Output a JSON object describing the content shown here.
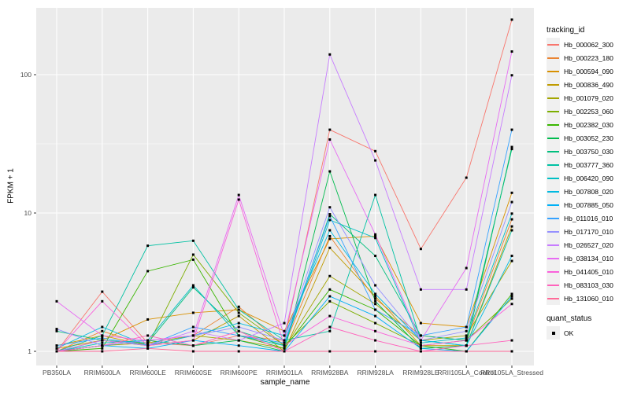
{
  "figure": {
    "y_axis": {
      "title": "FPKM + 1",
      "tick_labels": [
        "1",
        "10",
        "100"
      ]
    },
    "x_axis": {
      "title": "sample_name"
    },
    "legend": {
      "tracking_title": "tracking_id",
      "quant_title": "quant_status",
      "quant_items": [
        {
          "label": "OK"
        }
      ]
    },
    "colors": {
      "panel_bg": "#EBEBEB",
      "grid": "#FFFFFF",
      "tick_text": "#4D4D4D",
      "axis_tick": "#333333",
      "marker": "#000000",
      "legend_key_bg": "#F0F0F0"
    }
  },
  "chart_data": {
    "type": "line",
    "title": "",
    "xlabel": "sample_name",
    "ylabel": "FPKM + 1",
    "y_scale": "log10",
    "y_ticks": [
      1,
      10,
      100
    ],
    "y_minor_ticks": [
      3.162,
      31.62
    ],
    "ylim": [
      0.79,
      300
    ],
    "grid": true,
    "legend_position": "right",
    "marker": "black-square",
    "quant_status": {
      "label": "OK",
      "marker": "black-square"
    },
    "categories": [
      "PB350LA",
      "RRIM600LA",
      "RRIM600LE",
      "RRIM600SE",
      "RRIM600PE",
      "RRIM901LA",
      "RRIM928BA",
      "RRIM928LA",
      "RRIM928LE",
      "RRII105LA_Control",
      "RRII105LA_Stressed"
    ],
    "series": [
      {
        "name": "Hb_000062_300",
        "color": "#F8766D",
        "values": [
          1.0,
          2.7,
          1.15,
          1.1,
          1.3,
          1.2,
          40,
          28,
          5.5,
          18,
          250
        ]
      },
      {
        "name": "Hb_000223_180",
        "color": "#EA8331",
        "values": [
          1.0,
          1.4,
          1.1,
          1.3,
          2.1,
          1.1,
          6.8,
          2.4,
          1.3,
          1.2,
          9.0
        ]
      },
      {
        "name": "Hb_000594_090",
        "color": "#D89000",
        "values": [
          1.05,
          1.2,
          1.7,
          1.9,
          2.0,
          1.4,
          6.5,
          6.8,
          1.6,
          1.5,
          14
        ]
      },
      {
        "name": "Hb_000836_490",
        "color": "#C09B00",
        "values": [
          1.1,
          1.3,
          1.1,
          1.2,
          1.8,
          1.0,
          5.6,
          2.5,
          1.1,
          1.1,
          8.0
        ]
      },
      {
        "name": "Hb_001079_020",
        "color": "#A3A500",
        "values": [
          1.0,
          1.1,
          1.15,
          1.3,
          1.2,
          1.05,
          3.5,
          2.2,
          1.2,
          1.3,
          4.5
        ]
      },
      {
        "name": "Hb_002253_060",
        "color": "#7CAE00",
        "values": [
          1.0,
          1.2,
          1.1,
          5.0,
          1.9,
          1.1,
          2.3,
          1.6,
          1.1,
          1.2,
          2.4
        ]
      },
      {
        "name": "Hb_002382_030",
        "color": "#39B600",
        "values": [
          1.0,
          1.05,
          3.8,
          4.6,
          1.3,
          1.05,
          2.8,
          2.0,
          1.1,
          1.0,
          2.6
        ]
      },
      {
        "name": "Hb_003052_230",
        "color": "#00BB4E",
        "values": [
          1.0,
          1.1,
          1.2,
          1.1,
          1.2,
          1.0,
          20,
          2.3,
          1.05,
          1.1,
          30
        ]
      },
      {
        "name": "Hb_003750_030",
        "color": "#00BF7D",
        "values": [
          1.4,
          1.2,
          1.15,
          2.9,
          1.4,
          1.1,
          9.8,
          4.9,
          1.3,
          1.2,
          29
        ]
      },
      {
        "name": "Hb_003777_360",
        "color": "#00C1A3",
        "values": [
          1.0,
          1.3,
          5.8,
          6.3,
          2.0,
          1.2,
          1.4,
          13.5,
          1.2,
          1.1,
          7.5
        ]
      },
      {
        "name": "Hb_006420_090",
        "color": "#00BFC4",
        "values": [
          1.0,
          1.15,
          1.2,
          3.0,
          1.3,
          1.1,
          8.9,
          6.6,
          1.15,
          1.25,
          9.9
        ]
      },
      {
        "name": "Hb_007808_020",
        "color": "#00BAE0",
        "values": [
          1.05,
          1.5,
          1.1,
          1.3,
          1.6,
          1.3,
          7.5,
          2.6,
          1.2,
          1.1,
          4.9
        ]
      },
      {
        "name": "Hb_007885_050",
        "color": "#00B0F6",
        "values": [
          1.0,
          1.1,
          1.05,
          1.2,
          1.1,
          1.0,
          2.5,
          1.8,
          1.05,
          1.0,
          2.5
        ]
      },
      {
        "name": "Hb_011016_010",
        "color": "#35A2FF",
        "values": [
          1.1,
          1.25,
          1.1,
          1.5,
          1.3,
          1.15,
          9.5,
          2.0,
          1.3,
          1.5,
          40
        ]
      },
      {
        "name": "Hb_017170_010",
        "color": "#9590FF",
        "values": [
          1.45,
          1.1,
          1.2,
          1.3,
          1.5,
          1.2,
          11,
          3.0,
          1.2,
          1.4,
          12
        ]
      },
      {
        "name": "Hb_026527_020",
        "color": "#C77CFF",
        "values": [
          1.0,
          1.2,
          1.1,
          1.4,
          1.2,
          1.6,
          140,
          24,
          2.8,
          2.8,
          99
        ]
      },
      {
        "name": "Hb_038134_010",
        "color": "#E76BF3",
        "values": [
          2.3,
          1.3,
          1.2,
          1.3,
          13.5,
          1.3,
          34,
          7.0,
          1.2,
          4.0,
          147
        ]
      },
      {
        "name": "Hb_041405_010",
        "color": "#FA62DB",
        "values": [
          1.0,
          2.3,
          1.1,
          1.2,
          12.5,
          1.1,
          1.8,
          1.4,
          1.1,
          1.2,
          2.2
        ]
      },
      {
        "name": "Hb_083103_030",
        "color": "#FF62BC",
        "values": [
          1.0,
          1.1,
          1.3,
          1.1,
          1.4,
          1.0,
          1.5,
          1.2,
          1.0,
          1.1,
          1.2
        ]
      },
      {
        "name": "Hb_131060_010",
        "color": "#FF6A98",
        "values": [
          1.0,
          1.0,
          1.05,
          1.0,
          1.0,
          1.0,
          1.0,
          1.0,
          1.0,
          1.0,
          1.0
        ]
      }
    ]
  }
}
